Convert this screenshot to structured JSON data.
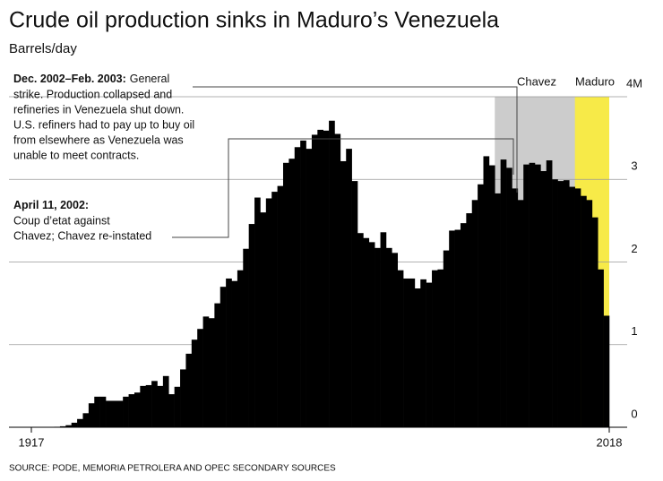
{
  "chart_data": {
    "type": "bar",
    "title": "Crude oil production sinks in Maduro’s Venezuela",
    "subtitle": "Barrels/day",
    "source": "SOURCE: PODE, MEMORIA PETROLERA AND OPEC SECONDARY SOURCES",
    "color": "#000000",
    "x": [
      1917,
      1918,
      1919,
      1920,
      1921,
      1922,
      1923,
      1924,
      1925,
      1926,
      1927,
      1928,
      1929,
      1930,
      1931,
      1932,
      1933,
      1934,
      1935,
      1936,
      1937,
      1938,
      1939,
      1940,
      1941,
      1942,
      1943,
      1944,
      1945,
      1946,
      1947,
      1948,
      1949,
      1950,
      1951,
      1952,
      1953,
      1954,
      1955,
      1956,
      1957,
      1958,
      1959,
      1960,
      1961,
      1962,
      1963,
      1964,
      1965,
      1966,
      1967,
      1968,
      1969,
      1970,
      1971,
      1972,
      1973,
      1974,
      1975,
      1976,
      1977,
      1978,
      1979,
      1980,
      1981,
      1982,
      1983,
      1984,
      1985,
      1986,
      1987,
      1988,
      1989,
      1990,
      1991,
      1992,
      1993,
      1994,
      1995,
      1996,
      1997,
      1998,
      1999,
      2000,
      2001,
      2002,
      2003,
      2004,
      2005,
      2006,
      2007,
      2008,
      2009,
      2010,
      2011,
      2012,
      2013,
      2014,
      2015,
      2016,
      2017,
      2018
    ],
    "values": [
      0,
      0.001,
      0.001,
      0.001,
      0.004,
      0.006,
      0.012,
      0.025,
      0.055,
      0.1,
      0.17,
      0.29,
      0.37,
      0.37,
      0.32,
      0.32,
      0.32,
      0.37,
      0.4,
      0.42,
      0.5,
      0.51,
      0.56,
      0.5,
      0.62,
      0.4,
      0.49,
      0.7,
      0.89,
      1.06,
      1.19,
      1.34,
      1.32,
      1.5,
      1.7,
      1.8,
      1.77,
      1.9,
      2.16,
      2.46,
      2.78,
      2.6,
      2.77,
      2.85,
      2.92,
      3.2,
      3.25,
      3.39,
      3.47,
      3.37,
      3.54,
      3.6,
      3.59,
      3.71,
      3.55,
      3.22,
      3.37,
      2.98,
      2.35,
      2.29,
      2.24,
      2.17,
      2.36,
      2.17,
      2.11,
      1.9,
      1.8,
      1.8,
      1.68,
      1.79,
      1.75,
      1.9,
      1.91,
      2.14,
      2.38,
      2.39,
      2.47,
      2.59,
      2.75,
      2.94,
      3.28,
      3.17,
      2.83,
      3.24,
      3.14,
      2.89,
      2.75,
      3.18,
      3.2,
      3.18,
      3.1,
      3.23,
      3.0,
      2.98,
      2.99,
      2.91,
      2.89,
      2.8,
      2.75,
      2.54,
      1.91,
      1.35
    ],
    "xlim": [
      1917,
      2018
    ],
    "xticks": [
      1917,
      2018
    ],
    "ylim": [
      0,
      4
    ],
    "yticks": [
      0,
      1,
      2,
      3,
      {
        "value": 4,
        "label": "4M"
      }
    ],
    "grid": true,
    "shaded_periods": [
      {
        "label": "Chavez",
        "start": 1999,
        "end": 2013,
        "color": "#cccccc"
      },
      {
        "label": "Maduro",
        "start": 2013,
        "end": 2018,
        "color": "#f7ea48"
      }
    ],
    "annotations": [
      {
        "title": "Dec. 2002–Feb. 2003:",
        "lines": [
          "General",
          "strike. Production collapsed and",
          "refineries in Venezuela shut down.",
          "U.S. refiners had to pay up to buy oil",
          "from elsewhere as Venezuela was",
          "unable to meet contracts."
        ]
      },
      {
        "title": "April 11, 2002:",
        "lines": [
          "Coup d’etat against",
          "Chavez; Chavez re-instated"
        ]
      }
    ]
  }
}
